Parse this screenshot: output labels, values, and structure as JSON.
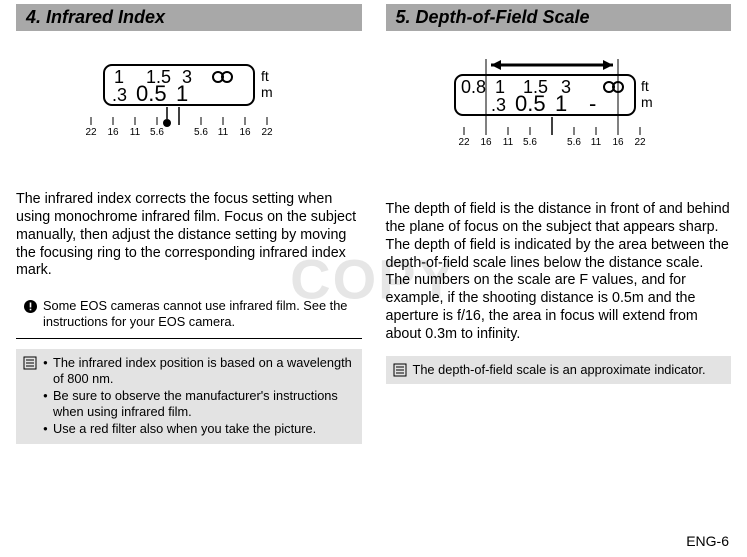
{
  "watermark": "COPY",
  "page_number": "ENG-6",
  "left": {
    "heading": "4. Infrared Index",
    "body": "The infrared index corrects the focus setting when using monochrome infrared film. Focus on the subject manually, then adjust the distance setting by moving the focusing ring to the corresponding infrared index mark.",
    "warning_note": "Some EOS cameras cannot use infrared film. See the instructions for your EOS camera.",
    "tip_bullets": [
      "The infrared index position is based on a wavelength of 800 nm.",
      "Be sure to observe the manufacturer's instructions when using infrared film.",
      "Use a red filter also when you take the picture."
    ],
    "diagram": {
      "window_labels_top": [
        "1",
        "1.5",
        "3"
      ],
      "window_labels_bottom": [
        ".3",
        "0.5",
        "1"
      ],
      "infinity_row": "top",
      "units_top": "ft",
      "units_bottom": "m",
      "scale_values": [
        "22",
        "16",
        "11",
        "5.6",
        "",
        "5.6",
        "11",
        "16",
        "22"
      ],
      "index_mark_left_of_center": true,
      "font_color": "#000000",
      "line_color": "#000000",
      "dot_color": "#000000",
      "window_border_width": 2,
      "tick_height": 8,
      "dot_radius": 4
    }
  },
  "right": {
    "heading": "5. Depth-of-Field Scale",
    "body": "The depth of field is the distance in front of and behind the plane of focus on the subject that appears sharp. The depth of field is indicated by the area between the depth-of-field scale lines below the distance scale. The numbers on the scale are F values, and for example, if the shooting distance is 0.5m and the aperture is f/16, the area in focus will extend from about 0.3m to infinity.",
    "tip_note": "The depth-of-field scale is an approximate indicator.",
    "diagram": {
      "window_labels_top": [
        "0.8",
        "1",
        "1.5",
        "3"
      ],
      "window_labels_bottom": [
        "",
        ".3",
        "0.5",
        "1",
        "-"
      ],
      "infinity_row": "top",
      "units_top": "ft",
      "units_bottom": "m",
      "scale_values": [
        "22",
        "16",
        "11",
        "5.6",
        "",
        "5.6",
        "11",
        "16",
        "22"
      ],
      "bracket_from_index": 1,
      "bracket_to_index": 7,
      "arrow": true,
      "font_color": "#000000",
      "line_color": "#000000",
      "window_border_width": 2,
      "tick_height": 8
    }
  }
}
